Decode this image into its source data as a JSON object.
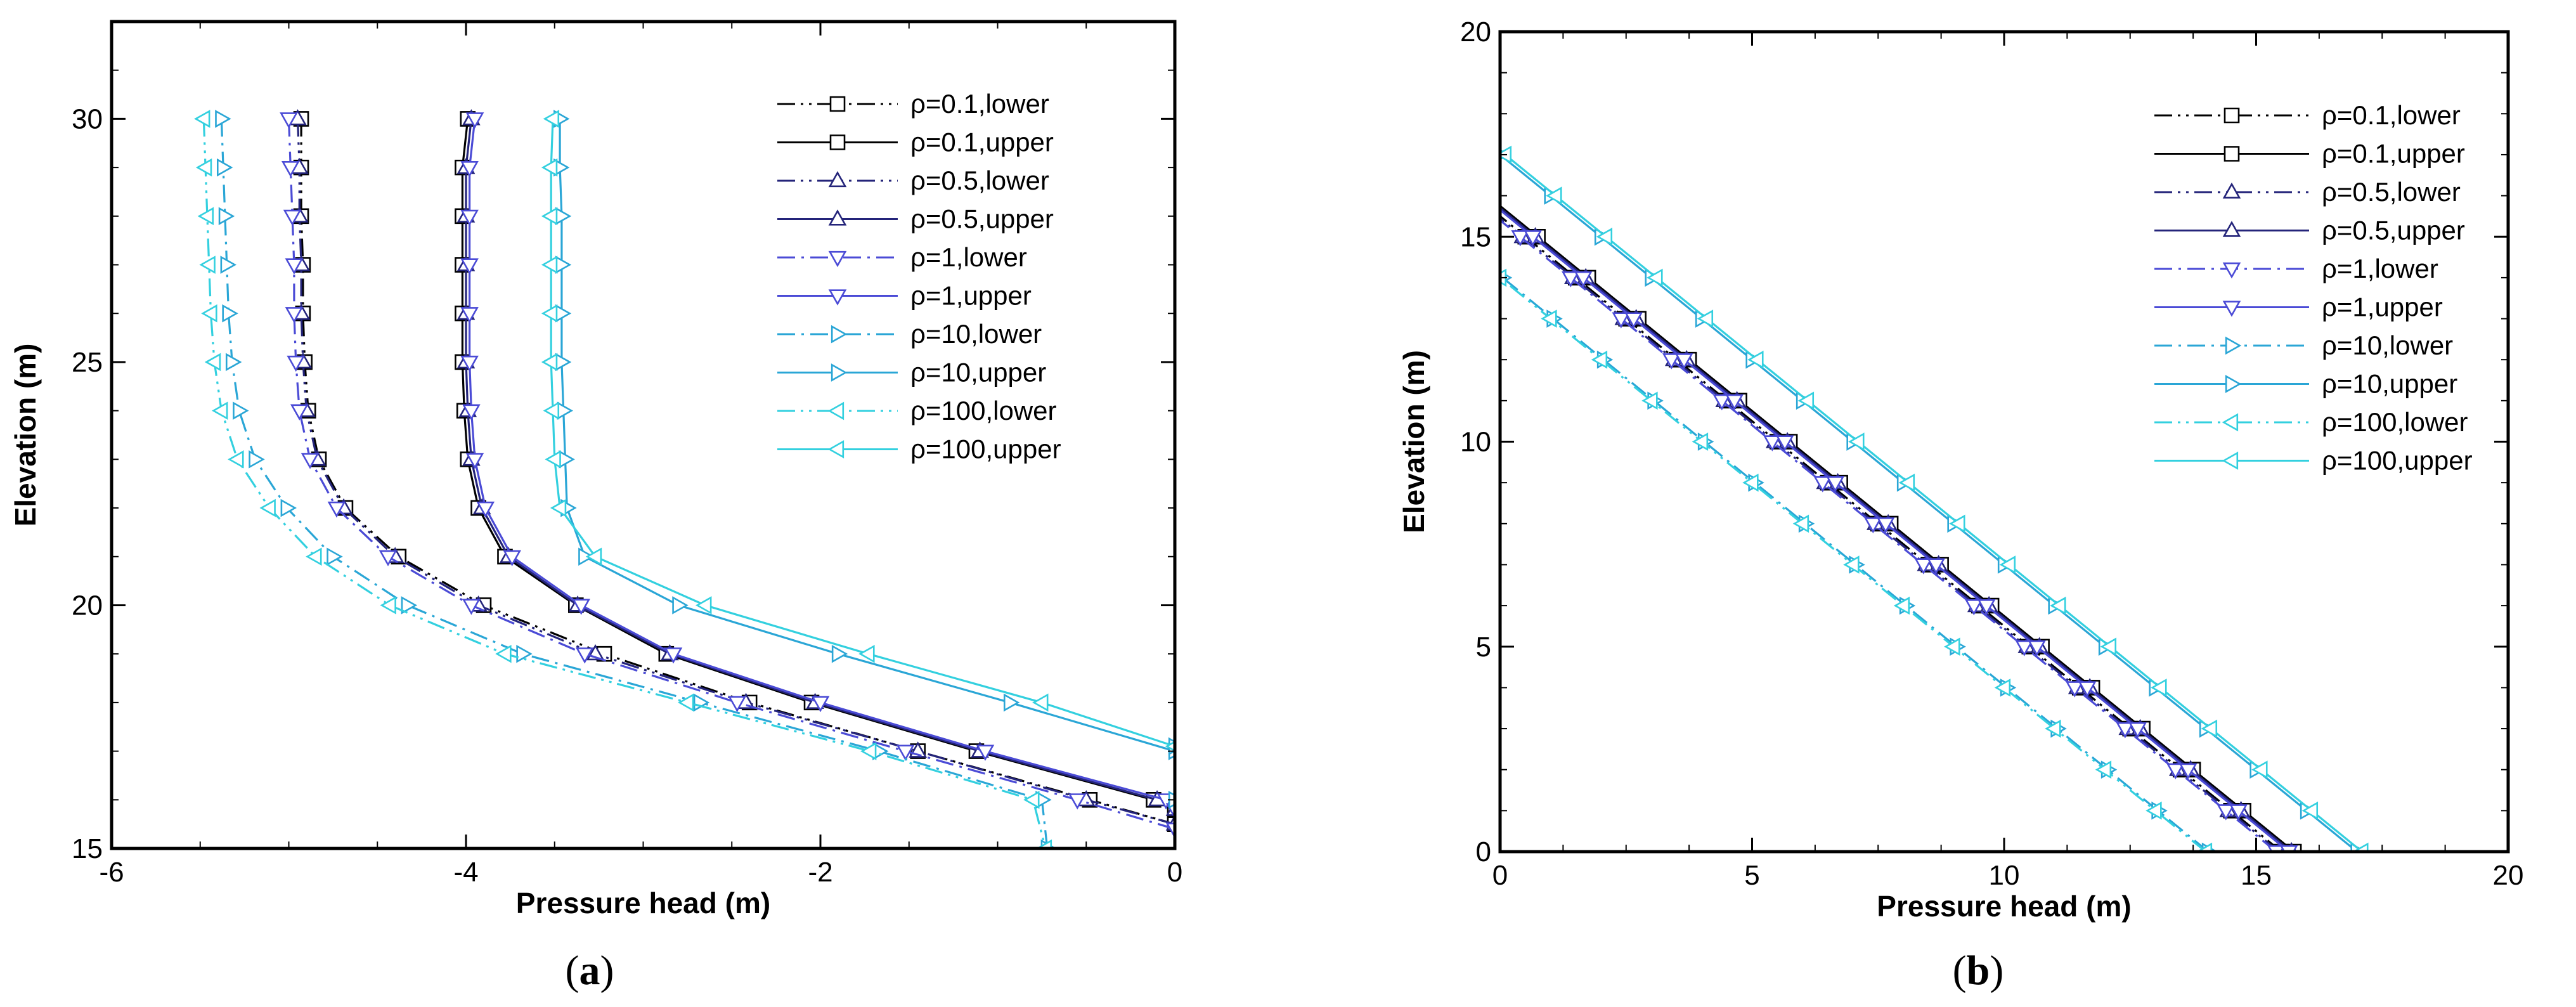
{
  "series_styles": [
    {
      "name": "ρ=0.1,lower",
      "color": "#000000",
      "marker": "square",
      "dash": "dashdotdot"
    },
    {
      "name": "ρ=0.1,upper",
      "color": "#000000",
      "marker": "square",
      "dash": "solid"
    },
    {
      "name": "ρ=0.5,lower",
      "color": "#24247a",
      "marker": "triangle-up",
      "dash": "dashdotdot"
    },
    {
      "name": "ρ=0.5,upper",
      "color": "#24247a",
      "marker": "triangle-up",
      "dash": "solid"
    },
    {
      "name": "ρ=1,lower",
      "color": "#4b4bd6",
      "marker": "triangle-down",
      "dash": "dashdot"
    },
    {
      "name": "ρ=1,upper",
      "color": "#4b4bd6",
      "marker": "triangle-down",
      "dash": "solid"
    },
    {
      "name": "ρ=10,lower",
      "color": "#2aa6d6",
      "marker": "triangle-right",
      "dash": "dashdot"
    },
    {
      "name": "ρ=10,upper",
      "color": "#2aa6d6",
      "marker": "triangle-right",
      "dash": "solid"
    },
    {
      "name": "ρ=100,lower",
      "color": "#33d0df",
      "marker": "triangle-left",
      "dash": "dashdotdot"
    },
    {
      "name": "ρ=100,upper",
      "color": "#33d0df",
      "marker": "triangle-left",
      "dash": "solid"
    }
  ],
  "chart_data": [
    {
      "type": "line",
      "panel": "(a)",
      "panel_letter": "a",
      "xlabel": "Pressure head (m)",
      "ylabel": "Elevation (m)",
      "xlim": [
        -6,
        0
      ],
      "ylim": [
        15,
        32
      ],
      "xticks": [
        -6,
        -4,
        -2,
        0
      ],
      "yticks": [
        15,
        20,
        25,
        30
      ],
      "xtick_labels": [
        "-6",
        "-4",
        "-2",
        "0"
      ],
      "ytick_labels": [
        "15",
        "20",
        "25",
        "30"
      ],
      "legend_position": "top-right",
      "series": [
        {
          "name": "ρ=0.1,lower",
          "y": [
            30,
            29,
            28,
            27,
            26,
            25,
            24,
            23,
            22,
            21,
            20,
            19,
            18,
            17,
            16,
            15.5
          ],
          "x": [
            -4.93,
            -4.93,
            -4.93,
            -4.92,
            -4.92,
            -4.91,
            -4.89,
            -4.83,
            -4.68,
            -4.38,
            -3.9,
            -3.22,
            -2.4,
            -1.45,
            -0.48,
            0
          ]
        },
        {
          "name": "ρ=0.1,upper",
          "y": [
            30,
            29,
            28,
            27,
            26,
            25,
            24,
            23,
            22,
            21,
            20,
            19,
            18,
            17,
            16,
            15.8
          ],
          "x": [
            -3.99,
            -4.02,
            -4.02,
            -4.02,
            -4.02,
            -4.02,
            -4.01,
            -3.99,
            -3.93,
            -3.78,
            -3.38,
            -2.87,
            -2.05,
            -1.12,
            -0.12,
            0
          ]
        },
        {
          "name": "ρ=0.5,lower",
          "y": [
            30,
            29,
            28,
            27,
            26,
            25,
            24,
            23,
            22,
            21,
            20,
            19,
            18,
            17,
            16,
            15.5
          ],
          "x": [
            -4.95,
            -4.94,
            -4.94,
            -4.93,
            -4.93,
            -4.92,
            -4.9,
            -4.84,
            -4.69,
            -4.4,
            -3.93,
            -3.27,
            -2.42,
            -1.45,
            -0.5,
            0
          ]
        },
        {
          "name": "ρ=0.5,upper",
          "y": [
            30,
            29,
            28,
            27,
            26,
            25,
            24,
            23,
            22,
            21,
            20,
            19,
            18,
            17,
            16,
            15.8
          ],
          "x": [
            -3.97,
            -4.0,
            -4.0,
            -4.0,
            -4.0,
            -4.0,
            -3.99,
            -3.97,
            -3.91,
            -3.76,
            -3.37,
            -2.85,
            -2.03,
            -1.1,
            -0.1,
            0
          ]
        },
        {
          "name": "ρ=1,lower",
          "y": [
            30,
            29,
            28,
            27,
            26,
            25,
            24,
            23,
            22,
            21,
            20,
            19,
            18,
            17,
            16,
            15.4
          ],
          "x": [
            -5.0,
            -4.99,
            -4.98,
            -4.97,
            -4.97,
            -4.96,
            -4.94,
            -4.88,
            -4.73,
            -4.44,
            -3.97,
            -3.33,
            -2.47,
            -1.52,
            -0.55,
            0
          ]
        },
        {
          "name": "ρ=1,upper",
          "y": [
            30,
            29,
            28,
            27,
            26,
            25,
            24,
            23,
            22,
            21,
            20,
            19,
            18,
            17,
            16,
            15.8
          ],
          "x": [
            -3.95,
            -3.98,
            -3.98,
            -3.98,
            -3.98,
            -3.98,
            -3.97,
            -3.95,
            -3.89,
            -3.74,
            -3.35,
            -2.83,
            -2.0,
            -1.07,
            -0.05,
            0
          ]
        },
        {
          "name": "ρ=10,lower",
          "y": [
            30,
            29,
            28,
            27,
            26,
            25,
            24,
            23,
            22,
            21,
            20,
            19,
            18,
            17,
            16,
            15
          ],
          "x": [
            -5.38,
            -5.37,
            -5.36,
            -5.35,
            -5.34,
            -5.32,
            -5.28,
            -5.19,
            -5.01,
            -4.75,
            -4.33,
            -3.68,
            -2.68,
            -1.67,
            -0.75,
            -0.72
          ]
        },
        {
          "name": "ρ=10,upper",
          "y": [
            30,
            29,
            28,
            27,
            26,
            25,
            24,
            23,
            22,
            21,
            20,
            19,
            18,
            17,
            16,
            17.1
          ],
          "x": [
            -3.47,
            -3.47,
            -3.46,
            -3.46,
            -3.46,
            -3.46,
            -3.45,
            -3.44,
            -3.43,
            -3.33,
            -2.8,
            -1.9,
            -0.93,
            0,
            0,
            0
          ]
        },
        {
          "name": "ρ=100,lower",
          "y": [
            30,
            29,
            28,
            27,
            26,
            25,
            24,
            23,
            22,
            21,
            20,
            19,
            18,
            17,
            16,
            15
          ],
          "x": [
            -5.48,
            -5.47,
            -5.46,
            -5.45,
            -5.44,
            -5.42,
            -5.38,
            -5.29,
            -5.11,
            -4.85,
            -4.43,
            -3.78,
            -2.75,
            -1.72,
            -0.8,
            -0.73
          ]
        },
        {
          "name": "ρ=100,upper",
          "y": [
            30,
            29,
            28,
            27,
            26,
            25,
            24,
            23,
            22,
            21,
            20,
            19,
            18,
            17.1
          ],
          "x": [
            -3.51,
            -3.52,
            -3.52,
            -3.52,
            -3.52,
            -3.52,
            -3.51,
            -3.5,
            -3.47,
            -3.27,
            -2.65,
            -1.73,
            -0.75,
            0
          ]
        }
      ]
    },
    {
      "type": "line",
      "panel": "(b)",
      "panel_letter": "b",
      "xlabel": "Pressure head (m)",
      "ylabel": "Elevation (m)",
      "xlim": [
        0,
        20
      ],
      "ylim": [
        0,
        20
      ],
      "xticks": [
        0,
        5,
        10,
        15,
        20
      ],
      "yticks": [
        0,
        5,
        10,
        15,
        20
      ],
      "xtick_labels": [
        "0",
        "5",
        "10",
        "15",
        "20"
      ],
      "ytick_labels": [
        "0",
        "5",
        "10",
        "15",
        "20"
      ],
      "legend_position": "top-right",
      "series": [
        {
          "name": "ρ=0.1,lower",
          "x0": 15.5,
          "y0": 15.5
        },
        {
          "name": "ρ=0.1,upper",
          "x0": 15.75,
          "y0": 15.75
        },
        {
          "name": "ρ=0.5,lower",
          "x0": 15.45,
          "y0": 15.45
        },
        {
          "name": "ρ=0.5,upper",
          "x0": 15.7,
          "y0": 15.7
        },
        {
          "name": "ρ=1,lower",
          "x0": 15.4,
          "y0": 15.4
        },
        {
          "name": "ρ=1,upper",
          "x0": 15.65,
          "y0": 15.65
        },
        {
          "name": "ρ=10,lower",
          "x0": 14.05,
          "y0": 14.05
        },
        {
          "name": "ρ=10,upper",
          "x0": 17.0,
          "y0": 17.0
        },
        {
          "name": "ρ=100,lower",
          "x0": 14.0,
          "y0": 14.0
        },
        {
          "name": "ρ=100,upper",
          "x0": 17.1,
          "y0": 17.1
        }
      ]
    }
  ]
}
